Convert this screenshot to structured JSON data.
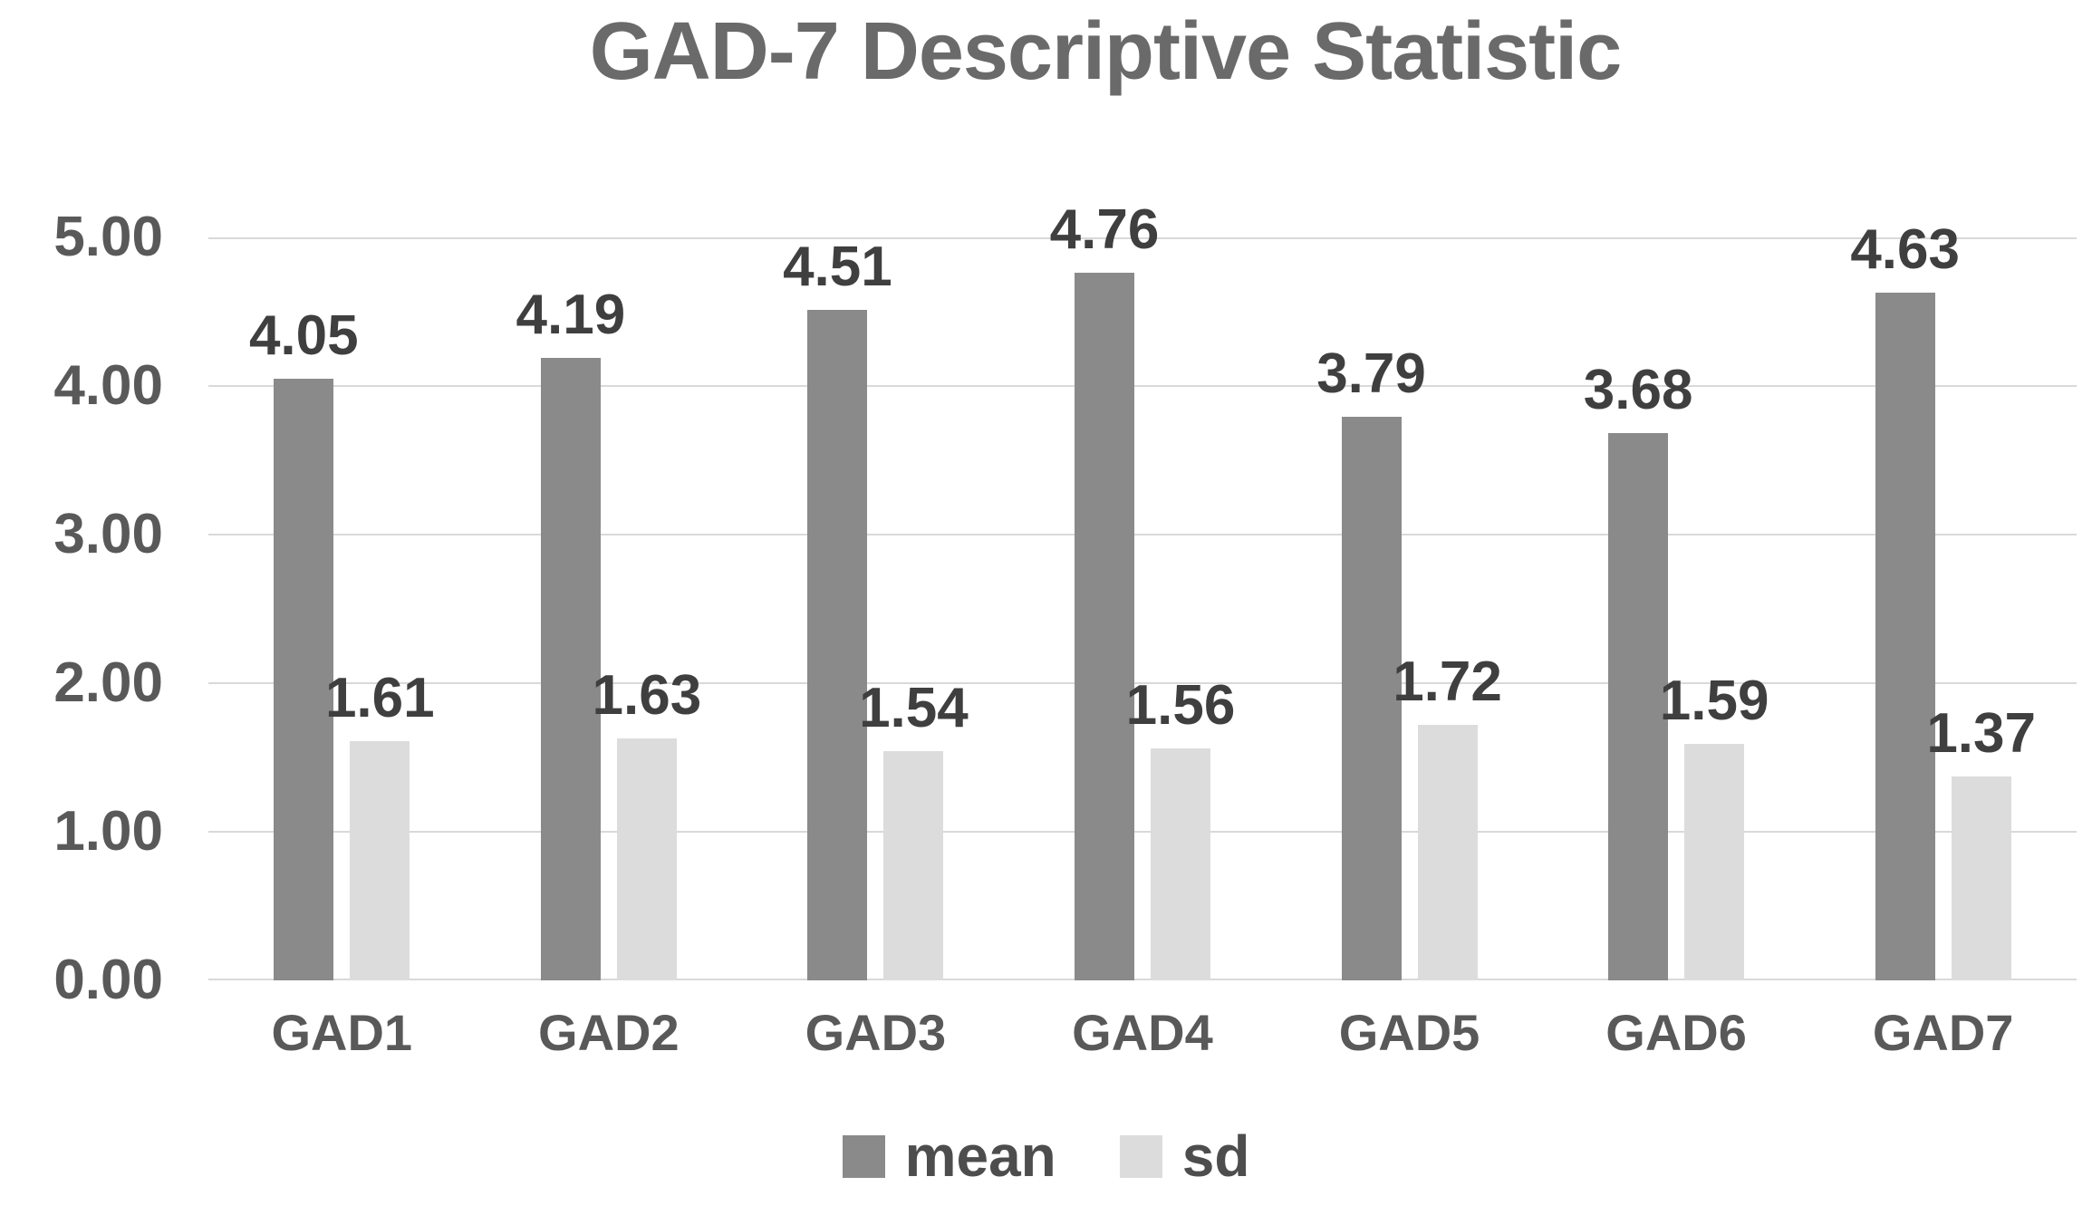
{
  "chart_data": {
    "type": "bar",
    "title": "GAD-7 Descriptive Statistic",
    "categories": [
      "GAD1",
      "GAD2",
      "GAD3",
      "GAD4",
      "GAD5",
      "GAD6",
      "GAD7"
    ],
    "series": [
      {
        "name": "mean",
        "color": "#8a8a8a",
        "values": [
          4.05,
          4.19,
          4.51,
          4.76,
          3.79,
          3.68,
          4.63
        ]
      },
      {
        "name": "sd",
        "color": "#dcdcdc",
        "values": [
          1.61,
          1.63,
          1.54,
          1.56,
          1.72,
          1.59,
          1.37
        ]
      }
    ],
    "data_labels": [
      "4.05",
      "4.19",
      "4.51",
      "4.76",
      "3.79",
      "3.68",
      "4.63",
      "1.61",
      "1.63",
      "1.54",
      "1.56",
      "1.72",
      "1.59",
      "1.37"
    ],
    "y_axis": {
      "min": 0,
      "max": 5,
      "step": 1,
      "tick_labels": [
        "0.00",
        "1.00",
        "2.00",
        "3.00",
        "4.00",
        "5.00"
      ]
    },
    "grid": true,
    "legend_position": "bottom",
    "colors": {
      "background": "#ffffff",
      "title_text": "#6a6a6a",
      "axis_text": "#595959",
      "data_label_text": "#3f3f3f",
      "legend_text": "#4d4d4d",
      "gridline": "#d9d9d9"
    }
  }
}
